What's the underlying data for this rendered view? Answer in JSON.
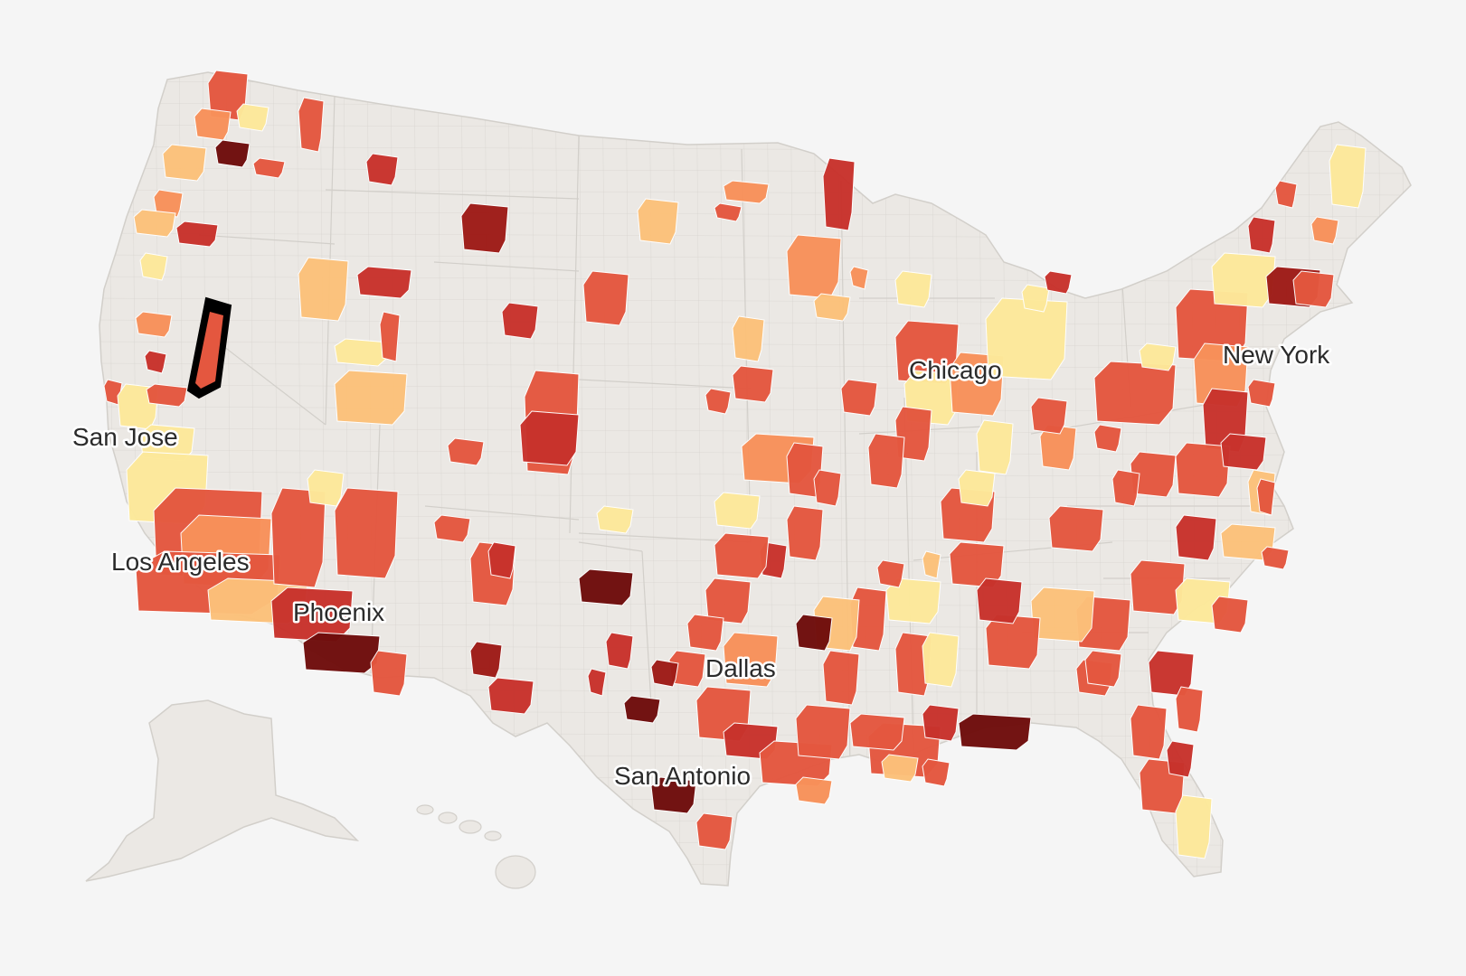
{
  "map": {
    "style": {
      "background": "#f5f5f5",
      "land": "#ebe8e4",
      "border": "#d2cfca",
      "selected_outline": "#000000"
    },
    "color_scale": [
      "#fde99a",
      "#fcc17a",
      "#f8915a",
      "#e4573f",
      "#c8322c",
      "#9e1b17",
      "#6f0d0c"
    ],
    "city_labels": [
      {
        "name": "San Jose"
      },
      {
        "name": "Los Angeles"
      },
      {
        "name": "Phoenix"
      },
      {
        "name": "Chicago"
      },
      {
        "name": "New York"
      },
      {
        "name": "Dallas"
      },
      {
        "name": "San Antonio"
      }
    ],
    "regions": [
      {
        "level": 4
      },
      {
        "level": 3
      },
      {
        "level": 1
      },
      {
        "level": 7
      },
      {
        "level": 2
      },
      {
        "level": 4
      },
      {
        "level": 3
      },
      {
        "level": 2
      },
      {
        "level": 5
      },
      {
        "level": 1
      },
      {
        "level": 4
      },
      {
        "level": 2
      },
      {
        "level": 3
      },
      {
        "level": 5
      },
      {
        "level": 4
      },
      {
        "level": 1
      },
      {
        "level": 4
      },
      {
        "level": 1
      },
      {
        "level": 1
      },
      {
        "level": 4
      },
      {
        "level": 3
      },
      {
        "level": 4
      },
      {
        "level": 2
      },
      {
        "level": 4
      },
      {
        "level": 1
      },
      {
        "level": 5
      },
      {
        "level": 7
      },
      {
        "level": 4
      },
      {
        "level": 1
      },
      {
        "level": 2
      },
      {
        "level": 5
      },
      {
        "level": 4
      },
      {
        "level": 5
      },
      {
        "level": 6
      },
      {
        "level": 5
      },
      {
        "level": 4
      },
      {
        "level": 4
      },
      {
        "level": 5
      },
      {
        "level": 4
      },
      {
        "level": 3
      },
      {
        "level": 4
      },
      {
        "level": 2
      },
      {
        "level": 2
      },
      {
        "level": 4
      },
      {
        "level": 4
      },
      {
        "level": 3
      },
      {
        "level": 4
      },
      {
        "level": 5
      },
      {
        "level": 3
      },
      {
        "level": 2
      },
      {
        "level": 3
      },
      {
        "level": 1
      },
      {
        "level": 4
      },
      {
        "level": 1
      },
      {
        "level": 3
      },
      {
        "level": 1
      },
      {
        "level": 1
      },
      {
        "level": 5
      },
      {
        "level": 4
      },
      {
        "level": 1
      },
      {
        "level": 3
      },
      {
        "level": 4
      },
      {
        "level": 1
      },
      {
        "level": 4
      },
      {
        "level": 3
      },
      {
        "level": 5
      },
      {
        "level": 4
      },
      {
        "level": 1
      },
      {
        "level": 6
      },
      {
        "level": 4
      },
      {
        "level": 5
      },
      {
        "level": 3
      },
      {
        "level": 4
      },
      {
        "level": 1
      },
      {
        "level": 4
      },
      {
        "level": 4
      },
      {
        "level": 2
      },
      {
        "level": 5
      },
      {
        "level": 2
      },
      {
        "level": 4
      },
      {
        "level": 4
      },
      {
        "level": 1
      },
      {
        "level": 4
      },
      {
        "level": 5
      },
      {
        "level": 4
      },
      {
        "level": 4
      },
      {
        "level": 1
      },
      {
        "level": 4
      },
      {
        "level": 4
      },
      {
        "level": 4
      },
      {
        "level": 2
      },
      {
        "level": 4
      },
      {
        "level": 4
      },
      {
        "level": 4
      },
      {
        "level": 1
      },
      {
        "level": 4
      },
      {
        "level": 4
      },
      {
        "level": 5
      },
      {
        "level": 7
      },
      {
        "level": 4
      },
      {
        "level": 4
      },
      {
        "level": 4
      },
      {
        "level": 2
      },
      {
        "level": 4
      },
      {
        "level": 7
      },
      {
        "level": 4
      },
      {
        "level": 5
      },
      {
        "level": 4
      },
      {
        "level": 4
      },
      {
        "level": 4
      },
      {
        "level": 3
      },
      {
        "level": 4
      },
      {
        "level": 5
      },
      {
        "level": 4
      },
      {
        "level": 4
      },
      {
        "level": 4
      },
      {
        "level": 4
      },
      {
        "level": 7
      },
      {
        "level": 4
      },
      {
        "level": 7
      },
      {
        "level": 5
      },
      {
        "level": 6
      },
      {
        "level": 7
      },
      {
        "level": 5
      },
      {
        "level": 4
      },
      {
        "level": 5
      },
      {
        "level": 6
      },
      {
        "level": 5
      },
      {
        "level": 4
      },
      {
        "level": 4
      },
      {
        "level": 1
      },
      {
        "level": 4
      },
      {
        "level": 4
      },
      {
        "level": 1
      },
      {
        "level": 2
      },
      {
        "level": 5
      },
      {
        "level": 4
      },
      {
        "level": 4
      },
      {
        "level": 1
      },
      {
        "level": 4
      },
      {
        "level": 4
      },
      {
        "level": 5
      },
      {
        "level": 4
      },
      {
        "level": 4
      },
      {
        "level": 5
      },
      {
        "level": 4
      },
      {
        "level": 2
      },
      {
        "level": 3
      },
      {
        "level": 1
      },
      {
        "level": 4
      },
      {
        "level": 6
      },
      {
        "level": 5
      },
      {
        "level": 7
      },
      {
        "level": 4
      },
      {
        "level": 3
      },
      {
        "level": 4
      },
      {
        "level": 1
      },
      {
        "level": 3
      },
      {
        "level": 4
      },
      {
        "level": 5
      },
      {
        "level": 4
      },
      {
        "level": 4
      },
      {
        "level": 4
      },
      {
        "level": 3
      },
      {
        "level": 1
      },
      {
        "level": 4
      }
    ]
  }
}
